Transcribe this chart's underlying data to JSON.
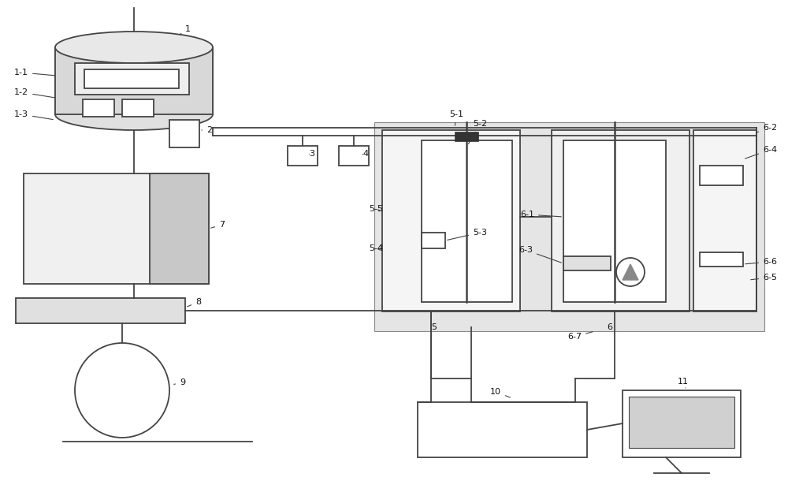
{
  "bg": "white",
  "lc": "#444444",
  "lw": 1.3,
  "fs": 8.0
}
